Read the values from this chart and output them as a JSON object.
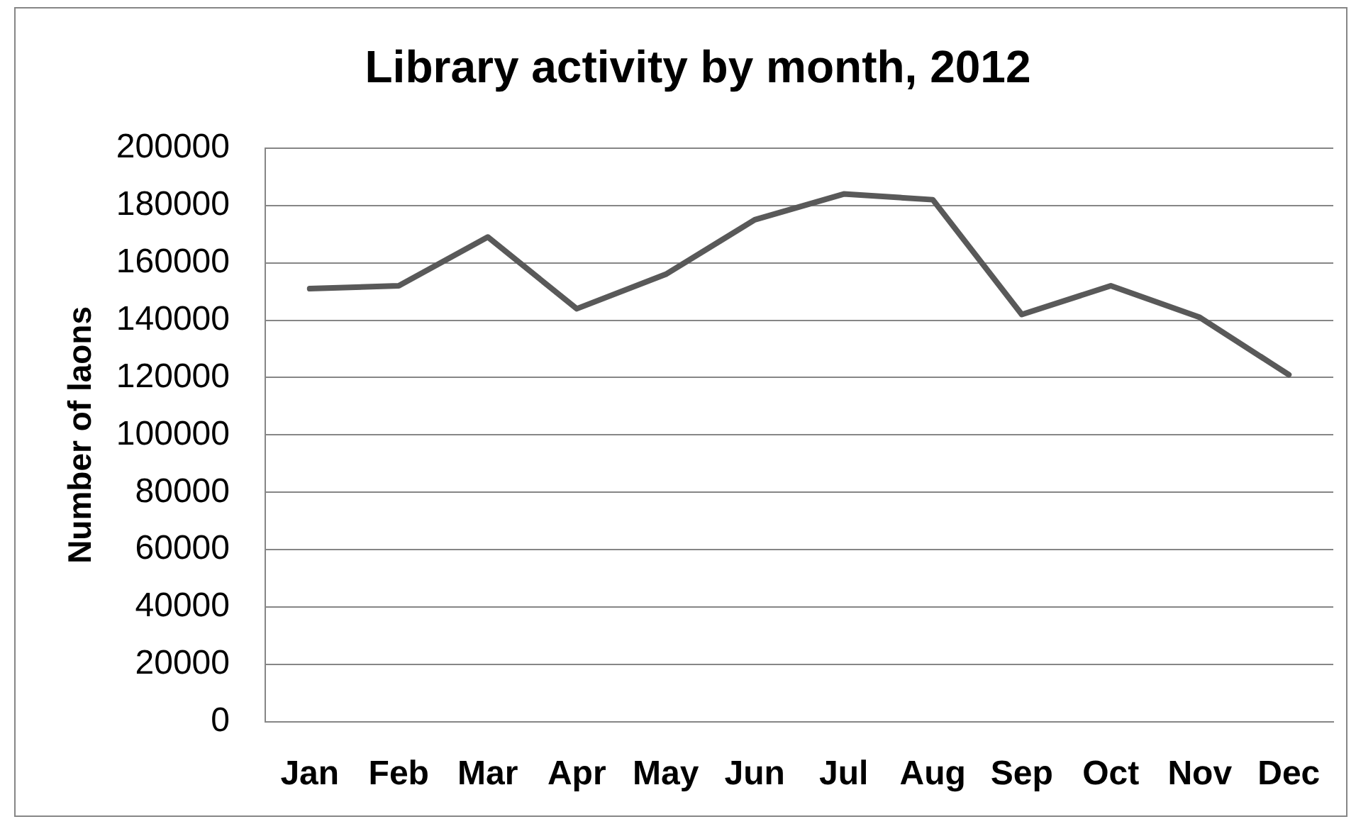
{
  "chart_data": {
    "type": "line",
    "title": "Library activity by month, 2012",
    "ylabel": "Number of laons",
    "categories": [
      "Jan",
      "Feb",
      "Mar",
      "Apr",
      "May",
      "Jun",
      "Jul",
      "Aug",
      "Sep",
      "Oct",
      "Nov",
      "Dec"
    ],
    "series": [
      {
        "color": "#595959",
        "values": [
          151000,
          152000,
          169000,
          144000,
          156000,
          175000,
          184000,
          182000,
          142000,
          152000,
          141000,
          121000
        ]
      }
    ],
    "ylim": [
      0,
      200000
    ],
    "yticks": [
      0,
      20000,
      40000,
      60000,
      80000,
      100000,
      120000,
      140000,
      160000,
      180000,
      200000
    ],
    "grid": "y",
    "marker": "none"
  }
}
